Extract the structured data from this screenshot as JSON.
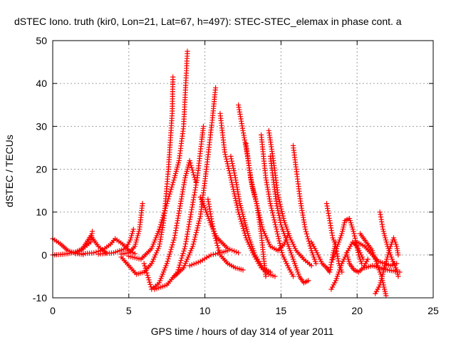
{
  "chart_data": {
    "type": "scatter",
    "title": "dSTEC Iono. truth (kir0, Lon=21, Lat=67, h=497): STEC-STEC_elemax in phase cont. a",
    "xlabel": "GPS time / hours of day 314 of year 2011",
    "ylabel": "dSTEC  / TECUs",
    "xlim": [
      0,
      25
    ],
    "ylim": [
      -10,
      50
    ],
    "xticks": [
      0,
      5,
      10,
      15,
      20,
      25
    ],
    "yticks": [
      -10,
      0,
      10,
      20,
      30,
      40,
      50
    ],
    "grid": true,
    "legend": "none",
    "marker": "plus",
    "color": "#ff0000",
    "series": [
      {
        "points": [
          [
            0.0,
            3.8
          ],
          [
            0.5,
            2.6
          ],
          [
            1.0,
            1.0
          ],
          [
            1.5,
            0.4
          ],
          [
            2.0,
            0.1
          ]
        ]
      },
      {
        "points": [
          [
            0.0,
            0.0
          ],
          [
            0.5,
            0.1
          ],
          [
            1.0,
            0.3
          ],
          [
            1.5,
            0.7
          ],
          [
            2.0,
            1.5
          ],
          [
            2.5,
            3.0
          ],
          [
            2.6,
            5.5
          ]
        ]
      },
      {
        "points": [
          [
            1.5,
            0.3
          ],
          [
            1.9,
            1.2
          ],
          [
            2.2,
            2.8
          ],
          [
            2.5,
            4.5
          ],
          [
            3.0,
            2.0
          ],
          [
            3.5,
            0.5
          ]
        ]
      },
      {
        "points": [
          [
            2.0,
            0.3
          ],
          [
            2.7,
            0.5
          ],
          [
            3.3,
            1.2
          ],
          [
            3.8,
            2.5
          ],
          [
            4.1,
            3.8
          ],
          [
            4.6,
            2.5
          ],
          [
            5.0,
            1.0
          ],
          [
            5.4,
            0.3
          ]
        ]
      },
      {
        "points": [
          [
            3.0,
            0.2
          ],
          [
            4.0,
            0.5
          ],
          [
            4.8,
            1.5
          ],
          [
            5.1,
            3.5
          ],
          [
            5.3,
            6.0
          ]
        ]
      },
      {
        "points": [
          [
            4.5,
            0.2
          ],
          [
            5.0,
            0.5
          ],
          [
            5.4,
            2.0
          ],
          [
            5.7,
            6.0
          ],
          [
            5.9,
            12.0
          ]
        ]
      },
      {
        "points": [
          [
            4.5,
            -0.5
          ],
          [
            5.0,
            -2.5
          ],
          [
            5.5,
            -4.5
          ],
          [
            6.0,
            -4.0
          ],
          [
            6.5,
            -2.0
          ],
          [
            7.0,
            2.0
          ],
          [
            7.3,
            8.0
          ],
          [
            7.6,
            20.0
          ],
          [
            7.85,
            33.0
          ],
          [
            7.9,
            41.5
          ]
        ]
      },
      {
        "points": [
          [
            5.0,
            -0.3
          ],
          [
            5.8,
            -1.0
          ],
          [
            6.5,
            1.5
          ],
          [
            7.0,
            6.0
          ],
          [
            7.5,
            12.0
          ],
          [
            8.0,
            18.0
          ],
          [
            8.3,
            22.0
          ],
          [
            8.6,
            30.0
          ],
          [
            8.85,
            47.5
          ]
        ]
      },
      {
        "points": [
          [
            6.0,
            -2.0
          ],
          [
            6.5,
            -8.0
          ],
          [
            7.0,
            -6.5
          ],
          [
            7.5,
            -2.0
          ],
          [
            8.0,
            4.0
          ],
          [
            8.4,
            12.0
          ],
          [
            8.7,
            18.0
          ],
          [
            9.0,
            22.0
          ],
          [
            9.4,
            17.0
          ]
        ]
      },
      {
        "points": [
          [
            6.7,
            -8.0
          ],
          [
            7.5,
            -7.0
          ],
          [
            8.2,
            -4.0
          ],
          [
            8.7,
            2.0
          ],
          [
            9.1,
            10.0
          ],
          [
            9.5,
            18.0
          ],
          [
            9.8,
            27.0
          ],
          [
            9.9,
            30.0
          ]
        ]
      },
      {
        "points": [
          [
            8.0,
            -5.0
          ],
          [
            8.6,
            -3.0
          ],
          [
            9.2,
            2.0
          ],
          [
            9.7,
            9.0
          ],
          [
            10.1,
            20.0
          ],
          [
            10.5,
            32.0
          ],
          [
            10.7,
            39.0
          ]
        ]
      },
      {
        "points": [
          [
            9.0,
            -2.5
          ],
          [
            9.7,
            -1.5
          ],
          [
            10.4,
            0.0
          ],
          [
            11.0,
            0.5
          ],
          [
            11.5,
            1.0
          ]
        ]
      },
      {
        "points": [
          [
            9.7,
            13.5
          ],
          [
            10.0,
            11.0
          ],
          [
            10.4,
            7.0
          ],
          [
            10.8,
            4.0
          ],
          [
            11.5,
            1.5
          ],
          [
            12.2,
            0.5
          ]
        ]
      },
      {
        "points": [
          [
            10.2,
            13.0
          ],
          [
            10.6,
            5.0
          ],
          [
            11.0,
            0.0
          ],
          [
            11.5,
            -2.0
          ],
          [
            12.0,
            -3.0
          ],
          [
            12.5,
            -3.5
          ]
        ]
      },
      {
        "points": [
          [
            11.0,
            33.0
          ],
          [
            11.3,
            24.0
          ],
          [
            11.7,
            18.0
          ],
          [
            12.2,
            10.0
          ],
          [
            12.7,
            4.0
          ],
          [
            13.2,
            0.0
          ],
          [
            13.7,
            -3.0
          ],
          [
            14.2,
            -4.5
          ],
          [
            14.6,
            -5.0
          ]
        ]
      },
      {
        "points": [
          [
            11.7,
            23.0
          ],
          [
            12.0,
            18.0
          ],
          [
            12.3,
            12.0
          ],
          [
            12.6,
            8.0
          ],
          [
            12.9,
            4.0
          ],
          [
            13.3,
            0.0
          ],
          [
            13.8,
            -3.0
          ],
          [
            14.3,
            -4.0
          ]
        ]
      },
      {
        "points": [
          [
            12.2,
            35.0
          ],
          [
            12.5,
            29.0
          ],
          [
            12.8,
            23.0
          ],
          [
            13.1,
            16.0
          ],
          [
            13.4,
            12.0
          ],
          [
            13.7,
            5.0
          ],
          [
            13.9,
            -2.0
          ],
          [
            14.0,
            -5.0
          ]
        ]
      },
      {
        "points": [
          [
            12.7,
            26.0
          ],
          [
            13.0,
            18.0
          ],
          [
            13.4,
            12.0
          ],
          [
            13.8,
            6.0
          ],
          [
            14.3,
            2.0
          ],
          [
            14.8,
            1.0
          ],
          [
            15.2,
            2.5
          ],
          [
            15.5,
            5.0
          ]
        ]
      },
      {
        "points": [
          [
            13.7,
            28.0
          ],
          [
            14.0,
            18.0
          ],
          [
            14.3,
            12.0
          ],
          [
            14.7,
            6.0
          ],
          [
            15.1,
            0.0
          ],
          [
            15.5,
            -3.0
          ],
          [
            15.8,
            -5.0
          ]
        ]
      },
      {
        "points": [
          [
            14.2,
            29.0
          ],
          [
            14.5,
            22.0
          ],
          [
            14.8,
            14.0
          ],
          [
            15.2,
            8.0
          ],
          [
            15.6,
            4.0
          ],
          [
            16.0,
            1.0
          ],
          [
            16.5,
            -1.0
          ],
          [
            17.0,
            -2.5
          ]
        ]
      },
      {
        "points": [
          [
            14.3,
            23.0
          ],
          [
            14.7,
            12.0
          ],
          [
            15.0,
            7.0
          ],
          [
            15.4,
            3.0
          ],
          [
            15.8,
            -1.0
          ],
          [
            16.2,
            -5.0
          ],
          [
            16.5,
            -6.5
          ],
          [
            16.8,
            -6.0
          ]
        ]
      },
      {
        "points": [
          [
            15.8,
            25.5
          ],
          [
            16.0,
            20.0
          ],
          [
            16.3,
            12.0
          ],
          [
            16.6,
            6.0
          ],
          [
            17.0,
            1.0
          ],
          [
            17.3,
            -2.0
          ]
        ]
      },
      {
        "points": [
          [
            17.0,
            3.0
          ],
          [
            17.3,
            1.0
          ],
          [
            17.7,
            -2.0
          ],
          [
            18.0,
            -3.0
          ],
          [
            18.2,
            -4.0
          ],
          [
            18.4,
            0.0
          ],
          [
            18.6,
            3.0
          ]
        ]
      },
      {
        "points": [
          [
            18.0,
            12.0
          ],
          [
            18.2,
            8.0
          ],
          [
            18.4,
            4.0
          ],
          [
            18.6,
            2.0
          ],
          [
            18.8,
            -2.0
          ],
          [
            19.0,
            -4.0
          ]
        ]
      },
      {
        "points": [
          [
            18.4,
            -1.0
          ],
          [
            18.7,
            2.0
          ],
          [
            19.0,
            5.0
          ],
          [
            19.2,
            8.0
          ],
          [
            19.5,
            8.5
          ],
          [
            19.8,
            5.0
          ],
          [
            20.1,
            0.0
          ],
          [
            20.3,
            -2.0
          ]
        ]
      },
      {
        "points": [
          [
            18.3,
            -8.0
          ],
          [
            18.6,
            -6.0
          ],
          [
            19.0,
            -2.0
          ],
          [
            19.4,
            1.0
          ],
          [
            19.7,
            3.0
          ],
          [
            20.0,
            2.0
          ],
          [
            20.4,
            -1.0
          ]
        ]
      },
      {
        "points": [
          [
            20.2,
            5.0
          ],
          [
            20.6,
            3.0
          ],
          [
            21.0,
            1.0
          ],
          [
            21.3,
            -2.0
          ],
          [
            21.6,
            -5.0
          ],
          [
            21.8,
            -8.0
          ],
          [
            21.9,
            -9.5
          ]
        ]
      },
      {
        "points": [
          [
            21.2,
            -9.0
          ],
          [
            21.5,
            -7.0
          ],
          [
            21.8,
            -3.0
          ],
          [
            22.1,
            1.0
          ],
          [
            22.4,
            4.0
          ],
          [
            22.6,
            2.0
          ],
          [
            22.7,
            0.0
          ]
        ]
      },
      {
        "points": [
          [
            21.5,
            10.0
          ],
          [
            21.7,
            6.0
          ],
          [
            22.0,
            2.0
          ],
          [
            22.3,
            -1.0
          ],
          [
            22.6,
            -3.5
          ],
          [
            22.7,
            -5.0
          ]
        ]
      },
      {
        "points": [
          [
            20.5,
            -3.0
          ],
          [
            21.0,
            -2.5
          ],
          [
            21.5,
            -3.0
          ],
          [
            22.0,
            -3.5
          ],
          [
            22.5,
            -3.8
          ],
          [
            22.8,
            -4.0
          ]
        ]
      },
      {
        "points": [
          [
            20.0,
            3.0
          ],
          [
            20.5,
            2.0
          ],
          [
            21.0,
            0.0
          ],
          [
            21.4,
            -1.5
          ],
          [
            21.8,
            -2.0
          ],
          [
            22.2,
            -2.5
          ],
          [
            22.6,
            -2.0
          ]
        ]
      },
      {
        "points": [
          [
            19.3,
            0.5
          ],
          [
            19.5,
            -2.0
          ],
          [
            19.8,
            -3.5
          ],
          [
            20.1,
            -4.0
          ],
          [
            20.4,
            -3.0
          ],
          [
            20.7,
            -1.0
          ]
        ]
      }
    ]
  }
}
